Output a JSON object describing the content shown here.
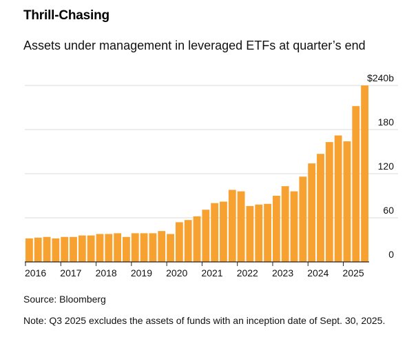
{
  "title": "Thrill-Chasing",
  "subtitle": "Assets under management in leveraged ETFs at quarter’s end",
  "source": "Source: Bloomberg",
  "note": "Note: Q3 2025 excludes the assets of funds with an inception date of Sept. 30, 2025.",
  "colors": {
    "bar": "#F7A130",
    "grid": "#d9d9d9",
    "axis": "#222222"
  },
  "chart_data": {
    "type": "bar",
    "title": "Thrill-Chasing",
    "subtitle": "Assets under management in leveraged ETFs at quarter’s end",
    "ylabel": "",
    "xlabel": "",
    "ylim": [
      0,
      240
    ],
    "yticks": [
      0,
      60,
      120,
      180,
      240
    ],
    "ytick_labels": [
      "0",
      "60",
      "120",
      "180",
      "$240b"
    ],
    "grid": true,
    "year_labels": [
      "2016",
      "2017",
      "2018",
      "2019",
      "2020",
      "2021",
      "2022",
      "2023",
      "2024",
      "2025"
    ],
    "categories": [
      "Q1 2016",
      "Q2 2016",
      "Q3 2016",
      "Q4 2016",
      "Q1 2017",
      "Q2 2017",
      "Q3 2017",
      "Q4 2017",
      "Q1 2018",
      "Q2 2018",
      "Q3 2018",
      "Q4 2018",
      "Q1 2019",
      "Q2 2019",
      "Q3 2019",
      "Q4 2019",
      "Q1 2020",
      "Q2 2020",
      "Q3 2020",
      "Q4 2020",
      "Q1 2021",
      "Q2 2021",
      "Q3 2021",
      "Q4 2021",
      "Q1 2022",
      "Q2 2022",
      "Q3 2022",
      "Q4 2022",
      "Q1 2023",
      "Q2 2023",
      "Q3 2023",
      "Q4 2023",
      "Q1 2024",
      "Q2 2024",
      "Q3 2024",
      "Q4 2024",
      "Q1 2025",
      "Q2 2025",
      "Q3 2025"
    ],
    "values": [
      32,
      33,
      34,
      32,
      34,
      34,
      36,
      36,
      38,
      38,
      39,
      34,
      39,
      39,
      39,
      42,
      38,
      54,
      57,
      62,
      71,
      80,
      82,
      98,
      96,
      76,
      78,
      79,
      90,
      103,
      96,
      116,
      134,
      147,
      163,
      172,
      164,
      212,
      240
    ]
  }
}
